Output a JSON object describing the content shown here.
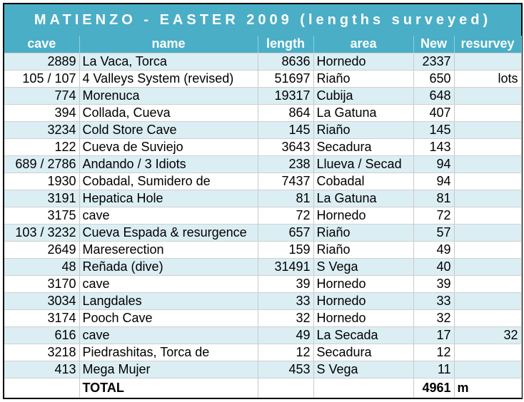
{
  "title": "MATIENZO - EASTER 2009 (lengths surveyed)",
  "headers": [
    "cave",
    "name",
    "length",
    "area",
    "New",
    "resurvey"
  ],
  "rows": [
    {
      "cave": "2889",
      "name": "La Vaca, Torca",
      "length": "8636",
      "area": "Hornedo",
      "new": "2337",
      "resurvey": ""
    },
    {
      "cave": "105 / 107",
      "name": "4 Valleys System (revised)",
      "length": "51697",
      "area": "Riaño",
      "new": "650",
      "resurvey": "lots"
    },
    {
      "cave": "774",
      "name": "Morenuca",
      "length": "19317",
      "area": "Cubija",
      "new": "648",
      "resurvey": ""
    },
    {
      "cave": "394",
      "name": "Collada, Cueva",
      "length": "864",
      "area": "La Gatuna",
      "new": "407",
      "resurvey": ""
    },
    {
      "cave": "3234",
      "name": "Cold Store Cave",
      "length": "145",
      "area": "Riaño",
      "new": "145",
      "resurvey": ""
    },
    {
      "cave": "122",
      "name": "Cueva de Suviejo",
      "length": "3643",
      "area": "Secadura",
      "new": "143",
      "resurvey": ""
    },
    {
      "cave": "689 / 2786",
      "name": "Andando / 3 Idiots",
      "length": "238",
      "area": "Llueva / Secad",
      "new": "94",
      "resurvey": ""
    },
    {
      "cave": "1930",
      "name": "Cobadal, Sumidero de",
      "length": "7437",
      "area": "Cobadal",
      "new": "94",
      "resurvey": ""
    },
    {
      "cave": "3191",
      "name": "Hepatica Hole",
      "length": "81",
      "area": "La Gatuna",
      "new": "81",
      "resurvey": ""
    },
    {
      "cave": "3175",
      "name": "cave",
      "length": "72",
      "area": "Hornedo",
      "new": "72",
      "resurvey": ""
    },
    {
      "cave": "103 / 3232",
      "name": "Cueva Espada & resurgence",
      "length": "657",
      "area": "Riaño",
      "new": "57",
      "resurvey": ""
    },
    {
      "cave": "2649",
      "name": "Mareserection",
      "length": "159",
      "area": "Riaño",
      "new": "49",
      "resurvey": ""
    },
    {
      "cave": "48",
      "name": "Reñada (dive)",
      "length": "31491",
      "area": "S Vega",
      "new": "40",
      "resurvey": ""
    },
    {
      "cave": "3170",
      "name": "cave",
      "length": "39",
      "area": "Hornedo",
      "new": "39",
      "resurvey": ""
    },
    {
      "cave": "3034",
      "name": "Langdales",
      "length": "33",
      "area": "Hornedo",
      "new": "33",
      "resurvey": ""
    },
    {
      "cave": "3174",
      "name": "Pooch Cave",
      "length": "32",
      "area": "Hornedo",
      "new": "32",
      "resurvey": ""
    },
    {
      "cave": "616",
      "name": "cave",
      "length": "49",
      "area": "La Secada",
      "new": "17",
      "resurvey": "32"
    },
    {
      "cave": "3218",
      "name": "Piedrashitas, Torca de",
      "length": "12",
      "area": "Secadura",
      "new": "12",
      "resurvey": ""
    },
    {
      "cave": "413",
      "name": "Mega Mujer",
      "length": "453",
      "area": "S Vega",
      "new": "11",
      "resurvey": ""
    }
  ],
  "total": {
    "label": "TOTAL",
    "value": "4961",
    "unit": "m"
  },
  "colors": {
    "header_bg": "#4aaec6",
    "band_bg": "#dbeef4"
  }
}
